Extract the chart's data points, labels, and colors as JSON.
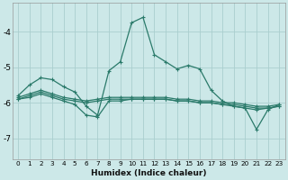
{
  "xlabel": "Humidex (Indice chaleur)",
  "bg_color": "#cce8e8",
  "grid_color": "#aacece",
  "line_color": "#2a7a6a",
  "xlim": [
    -0.5,
    23.5
  ],
  "ylim": [
    -7.6,
    -3.2
  ],
  "yticks": [
    -7,
    -6,
    -5,
    -4
  ],
  "xticks": [
    0,
    1,
    2,
    3,
    4,
    5,
    6,
    7,
    8,
    9,
    10,
    11,
    12,
    13,
    14,
    15,
    16,
    17,
    18,
    19,
    20,
    21,
    22,
    23
  ],
  "series": [
    {
      "x": [
        0,
        1,
        2,
        3,
        4,
        5,
        6,
        7,
        8,
        9,
        10,
        11,
        12,
        13,
        14,
        15,
        16,
        17,
        18,
        19,
        20,
        21,
        22,
        23
      ],
      "y": [
        -5.8,
        -5.5,
        -5.3,
        -5.35,
        -5.55,
        -5.7,
        -6.1,
        -6.35,
        -5.1,
        -4.85,
        -3.75,
        -3.6,
        -4.65,
        -4.85,
        -5.05,
        -4.95,
        -5.05,
        -5.65,
        -5.95,
        -6.1,
        -6.15,
        -6.75,
        -6.2,
        -6.05
      ]
    },
    {
      "x": [
        0,
        1,
        2,
        3,
        4,
        5,
        6,
        7,
        8,
        9,
        10,
        11,
        12,
        13,
        14,
        15,
        16,
        17,
        18,
        19,
        20,
        21,
        22,
        23
      ],
      "y": [
        -5.85,
        -5.75,
        -5.65,
        -5.75,
        -5.85,
        -5.9,
        -5.95,
        -5.9,
        -5.85,
        -5.85,
        -5.85,
        -5.85,
        -5.85,
        -5.85,
        -5.9,
        -5.9,
        -5.95,
        -5.95,
        -6.0,
        -6.0,
        -6.05,
        -6.1,
        -6.1,
        -6.05
      ]
    },
    {
      "x": [
        0,
        1,
        2,
        3,
        4,
        5,
        6,
        7,
        8,
        9,
        10,
        11,
        12,
        13,
        14,
        15,
        16,
        17,
        18,
        19,
        20,
        21,
        22,
        23
      ],
      "y": [
        -5.9,
        -5.8,
        -5.7,
        -5.8,
        -5.9,
        -5.95,
        -6.0,
        -5.95,
        -5.9,
        -5.9,
        -5.9,
        -5.9,
        -5.9,
        -5.9,
        -5.95,
        -5.95,
        -6.0,
        -6.0,
        -6.05,
        -6.05,
        -6.1,
        -6.15,
        -6.15,
        -6.1
      ]
    },
    {
      "x": [
        0,
        1,
        2,
        3,
        4,
        5,
        6,
        7,
        8,
        9,
        10,
        11,
        12,
        13,
        14,
        15,
        16,
        17,
        18,
        19,
        20,
        21,
        22,
        23
      ],
      "y": [
        -5.9,
        -5.85,
        -5.75,
        -5.85,
        -5.95,
        -6.05,
        -6.35,
        -6.4,
        -5.95,
        -5.95,
        -5.9,
        -5.9,
        -5.9,
        -5.9,
        -5.95,
        -5.95,
        -6.0,
        -6.0,
        -6.05,
        -6.1,
        -6.15,
        -6.2,
        -6.15,
        -6.1
      ]
    }
  ]
}
